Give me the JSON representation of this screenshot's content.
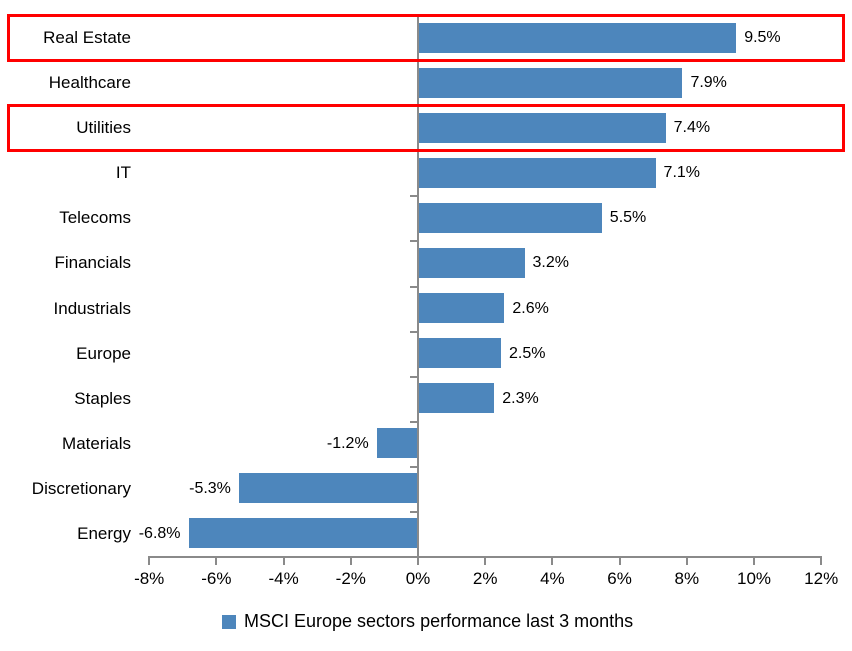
{
  "chart_data": {
    "type": "bar",
    "orientation": "horizontal",
    "title": "",
    "xlabel": "",
    "ylabel": "",
    "categories": [
      "Real Estate",
      "Healthcare",
      "Utilities",
      "IT",
      "Telecoms",
      "Financials",
      "Industrials",
      "Europe",
      "Staples",
      "Materials",
      "Discretionary",
      "Energy"
    ],
    "values": [
      9.5,
      7.9,
      7.4,
      7.1,
      5.5,
      3.2,
      2.6,
      2.5,
      2.3,
      -1.2,
      -5.3,
      -6.8
    ],
    "value_labels": [
      "9.5%",
      "7.9%",
      "7.4%",
      "7.1%",
      "5.5%",
      "3.2%",
      "2.6%",
      "2.5%",
      "2.3%",
      "-1.2%",
      "-5.3%",
      "-6.8%"
    ],
    "xlim": [
      -8,
      12
    ],
    "xtick_values": [
      -8,
      -6,
      -4,
      -2,
      0,
      2,
      4,
      6,
      8,
      10,
      12
    ],
    "xtick_labels": [
      "-8%",
      "-6%",
      "-4%",
      "-2%",
      "0%",
      "2%",
      "4%",
      "6%",
      "8%",
      "10%",
      "12%"
    ],
    "grid": false,
    "legend": "MSCI Europe sectors performance last 3 months",
    "legend_position": "bottom-center",
    "bar_color": "#4d86bc",
    "axis_color": "#8a8a8a",
    "text_color": "#000000",
    "highlight_box_color": "#ff0000",
    "highlighted_categories": [
      "Real Estate",
      "Utilities"
    ]
  }
}
